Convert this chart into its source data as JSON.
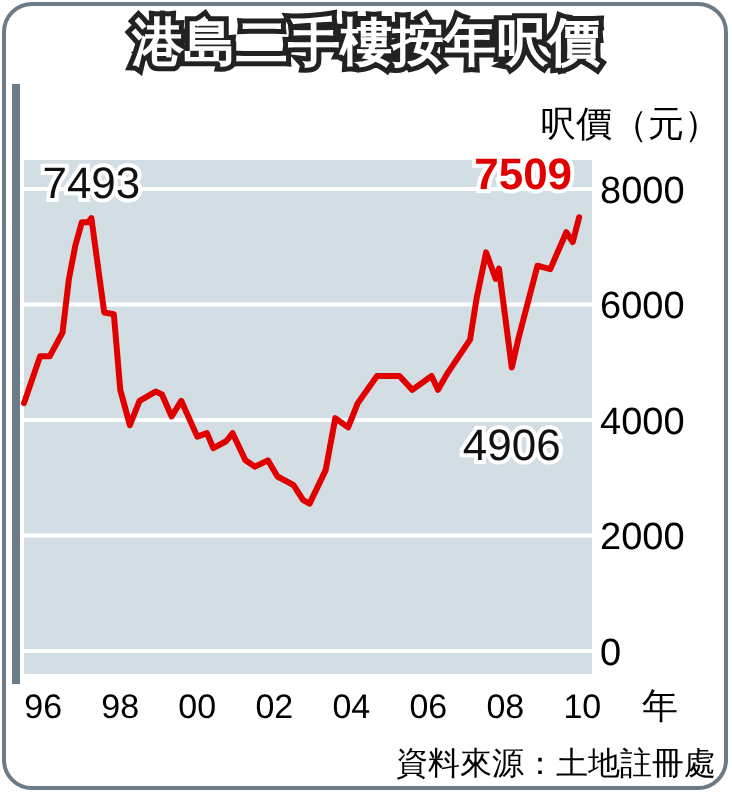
{
  "chart_data": {
    "type": "line",
    "title": "港島二手樓按年呎價",
    "ylabel": "呎價（元）",
    "xlabel": "年",
    "x": [
      "1996-01",
      "1996-06",
      "1996-09",
      "1997-01",
      "1997-03",
      "1997-05",
      "1997-07",
      "1997-09",
      "1997-10",
      "1998-02",
      "1998-05",
      "1998-07",
      "1998-10",
      "1999-01",
      "1999-06",
      "1999-08",
      "1999-11",
      "2000-02",
      "2000-07",
      "2000-10",
      "2000-12",
      "2001-04",
      "2001-06",
      "2001-10",
      "2002-01",
      "2002-05",
      "2002-08",
      "2003-01",
      "2003-04",
      "2003-06",
      "2003-11",
      "2004-02",
      "2004-06",
      "2004-09",
      "2005-03",
      "2005-10",
      "2006-02",
      "2006-08",
      "2006-10",
      "2007-01",
      "2007-08",
      "2007-10",
      "2008-01",
      "2008-04",
      "2008-05",
      "2008-09",
      "2008-11",
      "2009-05",
      "2009-09",
      "2010-02",
      "2010-04",
      "2010-06"
    ],
    "series": [
      {
        "color": "#e00000",
        "values": [
          4290,
          5100,
          5100,
          5510,
          6440,
          7020,
          7420,
          7420,
          7493,
          5860,
          5830,
          4520,
          3910,
          4330,
          4490,
          4440,
          4060,
          4330,
          3710,
          3770,
          3510,
          3630,
          3770,
          3300,
          3190,
          3300,
          3020,
          2870,
          2610,
          2550,
          3130,
          4030,
          3870,
          4290,
          4760,
          4760,
          4520,
          4760,
          4520,
          4810,
          5390,
          6090,
          6900,
          6440,
          6620,
          4906,
          5390,
          6670,
          6610,
          7250,
          7080,
          7509
        ]
      }
    ],
    "xlim": [
      "1996-01",
      "2010-10"
    ],
    "ylim": [
      -400,
      8500
    ],
    "xticks": [
      {
        "value": "1996-07",
        "label": "96"
      },
      {
        "value": "1998-07",
        "label": "98"
      },
      {
        "value": "2000-07",
        "label": "00"
      },
      {
        "value": "2002-07",
        "label": "02"
      },
      {
        "value": "2004-07",
        "label": "04"
      },
      {
        "value": "2006-07",
        "label": "06"
      },
      {
        "value": "2008-07",
        "label": "08"
      },
      {
        "value": "2010-07",
        "label": "10"
      }
    ],
    "yticks": [
      0,
      2000,
      4000,
      6000,
      8000
    ],
    "grid": "y",
    "line_style": "solid",
    "marker": "none",
    "annotations": [
      {
        "text": "7493",
        "x": "1997-10",
        "y": 7493
      },
      {
        "text": "4906",
        "x": "2008-09",
        "y": 4906
      },
      {
        "text": "7509",
        "x": "2010-06",
        "y": 7509
      },
      "資料來源：土地註冊處"
    ]
  }
}
